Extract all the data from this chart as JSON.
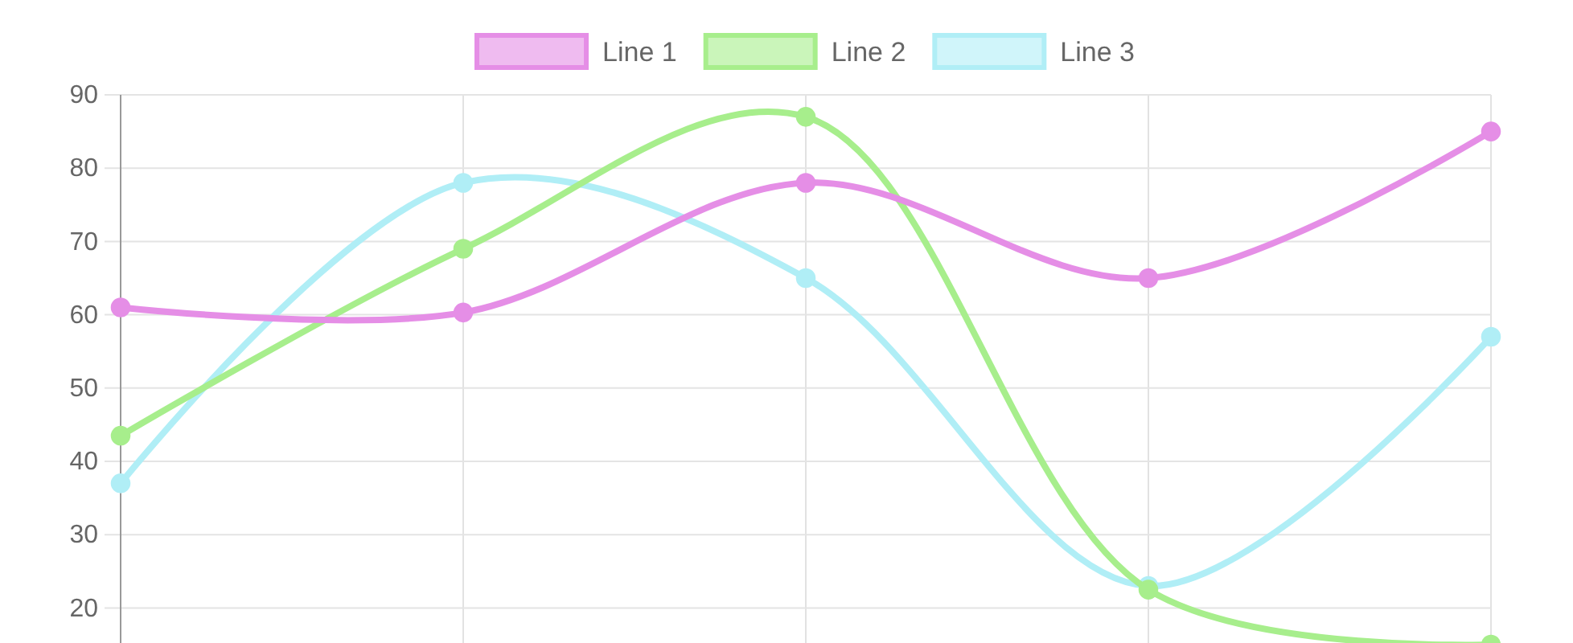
{
  "chart_data": {
    "type": "line",
    "categories": [
      null,
      null,
      null,
      null,
      null
    ],
    "series": [
      {
        "name": "Line 1",
        "color": "#e58ee6",
        "values": [
          61,
          60.3,
          78,
          65,
          85
        ]
      },
      {
        "name": "Line 2",
        "color": "#a7ee8c",
        "values": [
          43.5,
          69,
          87,
          22.5,
          15
        ]
      },
      {
        "name": "Line 3",
        "color": "#b0eef6",
        "values": [
          37,
          78,
          65,
          23,
          57
        ]
      }
    ],
    "ylim": [
      15,
      90
    ],
    "yticks": [
      20,
      30,
      40,
      50,
      60,
      70,
      80,
      90
    ],
    "grid": true,
    "legend": "top",
    "marker": "circle",
    "line_style": "solid"
  }
}
